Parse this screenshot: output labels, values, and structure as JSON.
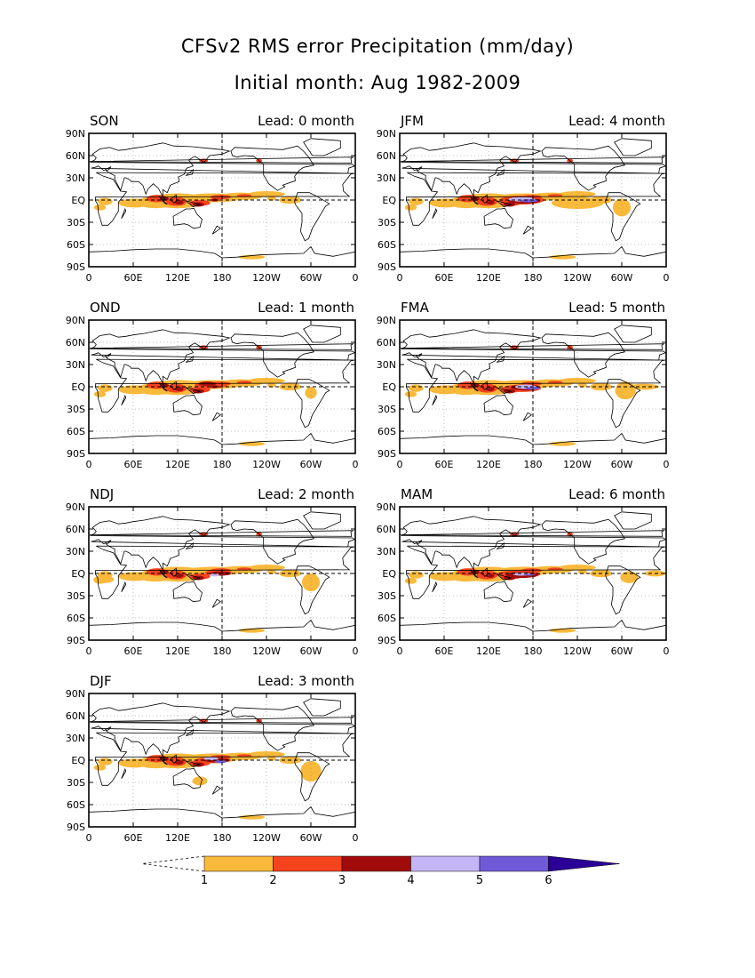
{
  "title": "CFSv2 RMS error Precipitation (mm/day)",
  "subtitle": "Initial month: Aug 1982-2009",
  "lead_prefix": "Lead:",
  "lead_suffix": "month",
  "lat_ticks": [
    "90N",
    "60N",
    "30N",
    "EQ",
    "30S",
    "60S",
    "90S"
  ],
  "lon_ticks": [
    "0",
    "60E",
    "120E",
    "180",
    "120W",
    "60W",
    "0"
  ],
  "panels": [
    {
      "season": "SON",
      "lead": 0
    },
    {
      "season": "OND",
      "lead": 1
    },
    {
      "season": "NDJ",
      "lead": 2
    },
    {
      "season": "DJF",
      "lead": 3
    },
    {
      "season": "JFM",
      "lead": 4
    },
    {
      "season": "FMA",
      "lead": 5
    },
    {
      "season": "MAM",
      "lead": 6
    }
  ],
  "colorbar": {
    "levels": [
      "1",
      "2",
      "3",
      "4",
      "5",
      "6"
    ],
    "colors": [
      "#f9b93a",
      "#f5431e",
      "#a20b0b",
      "#c4b6f6",
      "#715ad8",
      "#2b0096"
    ]
  },
  "colors": {
    "land_outline": "#000000",
    "grid": "#909090",
    "reference_line": "#000000"
  }
}
